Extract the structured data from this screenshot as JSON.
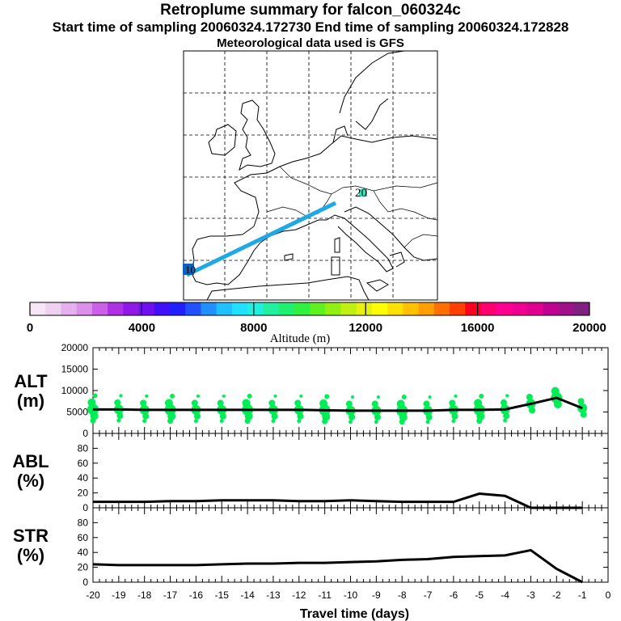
{
  "header": {
    "title": "Retroplume summary for falcon_060324c",
    "sampling": "Start time of sampling 20060324.172730     End time of sampling 20060324.172828",
    "met": "Meteorological data used is GFS"
  },
  "map": {
    "label_start": "20",
    "label_end": "10",
    "trajectory_color": "#1ea8e6",
    "grid_color": "#000000"
  },
  "colorbar": {
    "title": "Altitude (m)",
    "ticks": [
      "0",
      "4000",
      "8000",
      "12000",
      "16000",
      "20000"
    ],
    "colors": [
      "#f6e6f6",
      "#eed0f0",
      "#e6b0ee",
      "#dc90ea",
      "#cc60e8",
      "#b030e6",
      "#9018e8",
      "#7010f0",
      "#4010f8",
      "#2020ff",
      "#2050ff",
      "#2090ff",
      "#20c0ff",
      "#20e0ff",
      "#20f0e0",
      "#20f0a0",
      "#20f070",
      "#30f040",
      "#60f020",
      "#90f010",
      "#c0f010",
      "#e8f010",
      "#ffff00",
      "#ffe000",
      "#ffc000",
      "#ffa000",
      "#ff7000",
      "#ff4000",
      "#ff0020",
      "#ff0070",
      "#ff0090",
      "#f00090",
      "#e00090",
      "#c00090",
      "#a0108a",
      "#802080"
    ]
  },
  "chart_data": [
    {
      "type": "line",
      "panel": "ALT",
      "ylabel": "ALT\n(m)",
      "ylabel_lines": [
        "ALT",
        "(m)"
      ],
      "ylim": [
        0,
        20000
      ],
      "yticks": [
        "0",
        "5000",
        "10000",
        "15000",
        "20000"
      ],
      "x": [
        -20,
        -19,
        -18,
        -17,
        -16,
        -15,
        -14,
        -13,
        -12,
        -11,
        -10,
        -9,
        -8,
        -7,
        -6,
        -5,
        -4,
        -3,
        -2,
        -1
      ],
      "values": [
        5600,
        5600,
        5500,
        5500,
        5500,
        5500,
        5500,
        5500,
        5500,
        5400,
        5300,
        5300,
        5300,
        5300,
        5500,
        5500,
        5600,
        6900,
        8300,
        5900
      ],
      "scatter_color": "#00ee55"
    },
    {
      "type": "line",
      "panel": "ABL",
      "ylabel_lines": [
        "ABL",
        "(%)"
      ],
      "ylim": [
        0,
        100
      ],
      "yticks": [
        "0",
        "20",
        "40",
        "60",
        "80"
      ],
      "x": [
        -20,
        -19,
        -18,
        -17,
        -16,
        -15,
        -14,
        -13,
        -12,
        -11,
        -10,
        -9,
        -8,
        -7,
        -6,
        -5,
        -4,
        -3,
        -2,
        -1
      ],
      "values": [
        8,
        8,
        8,
        9,
        9,
        10,
        10,
        10,
        9,
        9,
        10,
        9,
        8,
        8,
        8,
        19,
        16,
        0,
        0,
        0
      ]
    },
    {
      "type": "line",
      "panel": "STR",
      "ylabel_lines": [
        "STR",
        "(%)"
      ],
      "ylim": [
        0,
        100
      ],
      "yticks": [
        "0",
        "20",
        "40",
        "60",
        "80"
      ],
      "x": [
        -20,
        -19,
        -18,
        -17,
        -16,
        -15,
        -14,
        -13,
        -12,
        -11,
        -10,
        -9,
        -8,
        -7,
        -6,
        -5,
        -4,
        -3,
        -2,
        -1
      ],
      "values": [
        24,
        23,
        23,
        23,
        23,
        24,
        25,
        25,
        26,
        26,
        27,
        28,
        30,
        31,
        34,
        35,
        36,
        43,
        18,
        0
      ],
      "xlabel": "Travel time (days)",
      "xticks": [
        "-20",
        "-19",
        "-18",
        "-17",
        "-16",
        "-15",
        "-14",
        "-13",
        "-12",
        "-11",
        "-10",
        "-9",
        "-8",
        "-7",
        "-6",
        "-5",
        "-4",
        "-3",
        "-2",
        "-1",
        "0"
      ]
    }
  ]
}
